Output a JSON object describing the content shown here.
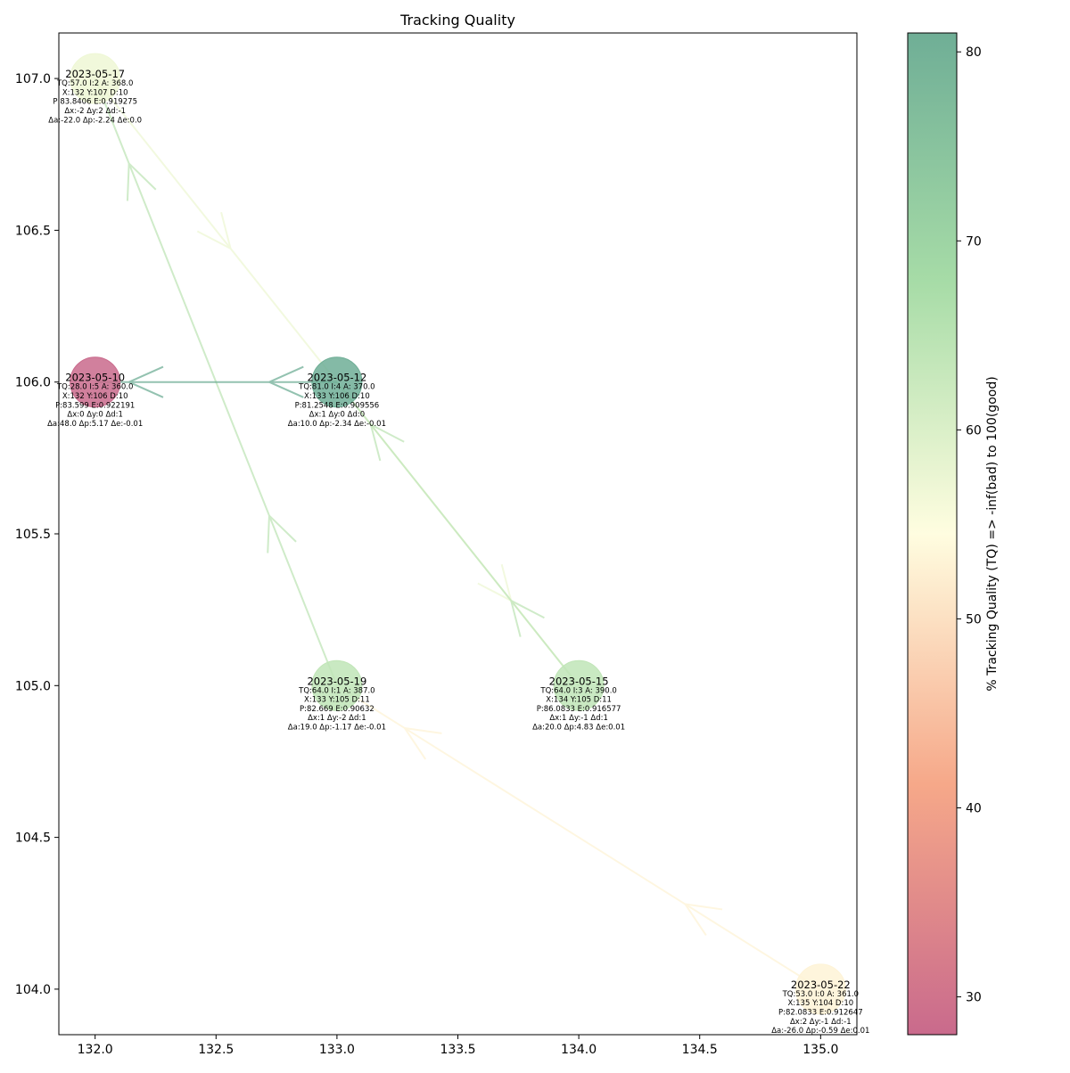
{
  "chart_data": {
    "type": "scatter",
    "title": "Tracking Quality",
    "xlabel": "",
    "ylabel": "",
    "xlim": [
      131.85,
      135.15
    ],
    "ylim": [
      103.85,
      107.15
    ],
    "x_ticks": [
      "132.0",
      "132.5",
      "133.0",
      "133.5",
      "134.0",
      "134.5",
      "135.0"
    ],
    "y_ticks": [
      "104.0",
      "104.5",
      "105.0",
      "105.5",
      "106.0",
      "106.5",
      "107.0"
    ],
    "colorbar": {
      "label": "% Tracking Quality (TQ) =>  -inf(bad) to 100(good)",
      "range": [
        28,
        81
      ],
      "ticks": [
        "30",
        "40",
        "50",
        "60",
        "70",
        "80"
      ]
    },
    "points": [
      {
        "x": 132,
        "y": 106,
        "tq": 28,
        "date": "2023-05-10",
        "lines": [
          "TQ:28.0 I:5 A: 360.0",
          "X:132 Y:106 D:10",
          "P:83.599 E:0.922191",
          "Δx:0 Δy:0 Δd:1",
          "Δa:48.0 Δp:5.17 Δe:-0.01"
        ]
      },
      {
        "x": 133,
        "y": 106,
        "tq": 81,
        "date": "2023-05-12",
        "lines": [
          "TQ:81.0 I:4 A: 370.0",
          "X:133 Y:106 D:10",
          "P:81.2548 E:0.909556",
          "Δx:1 Δy:0 Δd:0",
          "Δa:10.0 Δp:-2.34 Δe:-0.01"
        ]
      },
      {
        "x": 134,
        "y": 105,
        "tq": 64,
        "date": "2023-05-15",
        "lines": [
          "TQ:64.0 I:3 A: 390.0",
          "X:134 Y:105 D:11",
          "P:86.0833 E:0.916577",
          "Δx:1 Δy:-1 Δd:1",
          "Δa:20.0 Δp:4.83 Δe:0.01"
        ]
      },
      {
        "x": 132,
        "y": 107,
        "tq": 57,
        "date": "2023-05-17",
        "lines": [
          "TQ:57.0 I:2 A: 368.0",
          "X:132 Y:107 D:10",
          "P:83.8406 E:0.919275",
          "Δx:-2 Δy:2 Δd:-1",
          "Δa:-22.0 Δp:-2.24 Δe:0.0"
        ]
      },
      {
        "x": 133,
        "y": 105,
        "tq": 64,
        "date": "2023-05-19",
        "lines": [
          "TQ:64.0 I:1 A: 387.0",
          "X:133 Y:105 D:11",
          "P:82.669 E:0.90632",
          "Δx:1 Δy:-2 Δd:1",
          "Δa:19.0 Δp:-1.17 Δe:-0.01"
        ]
      },
      {
        "x": 135,
        "y": 104,
        "tq": 53,
        "date": "2023-05-22",
        "lines": [
          "TQ:53.0 I:0 A: 361.0",
          "X:135 Y:104 D:10",
          "P:82.0833 E:0.912647",
          "Δx:2 Δy:-1 Δd:-1",
          "Δa:-26.0 Δp:-0.59 Δe:0.01"
        ]
      }
    ],
    "arrows": [
      {
        "from": "2023-05-22",
        "to": "2023-05-19"
      },
      {
        "from": "2023-05-19",
        "to": "2023-05-17"
      },
      {
        "from": "2023-05-17",
        "to": "2023-05-15"
      },
      {
        "from": "2023-05-15",
        "to": "2023-05-12"
      },
      {
        "from": "2023-05-12",
        "to": "2023-05-10"
      }
    ]
  }
}
